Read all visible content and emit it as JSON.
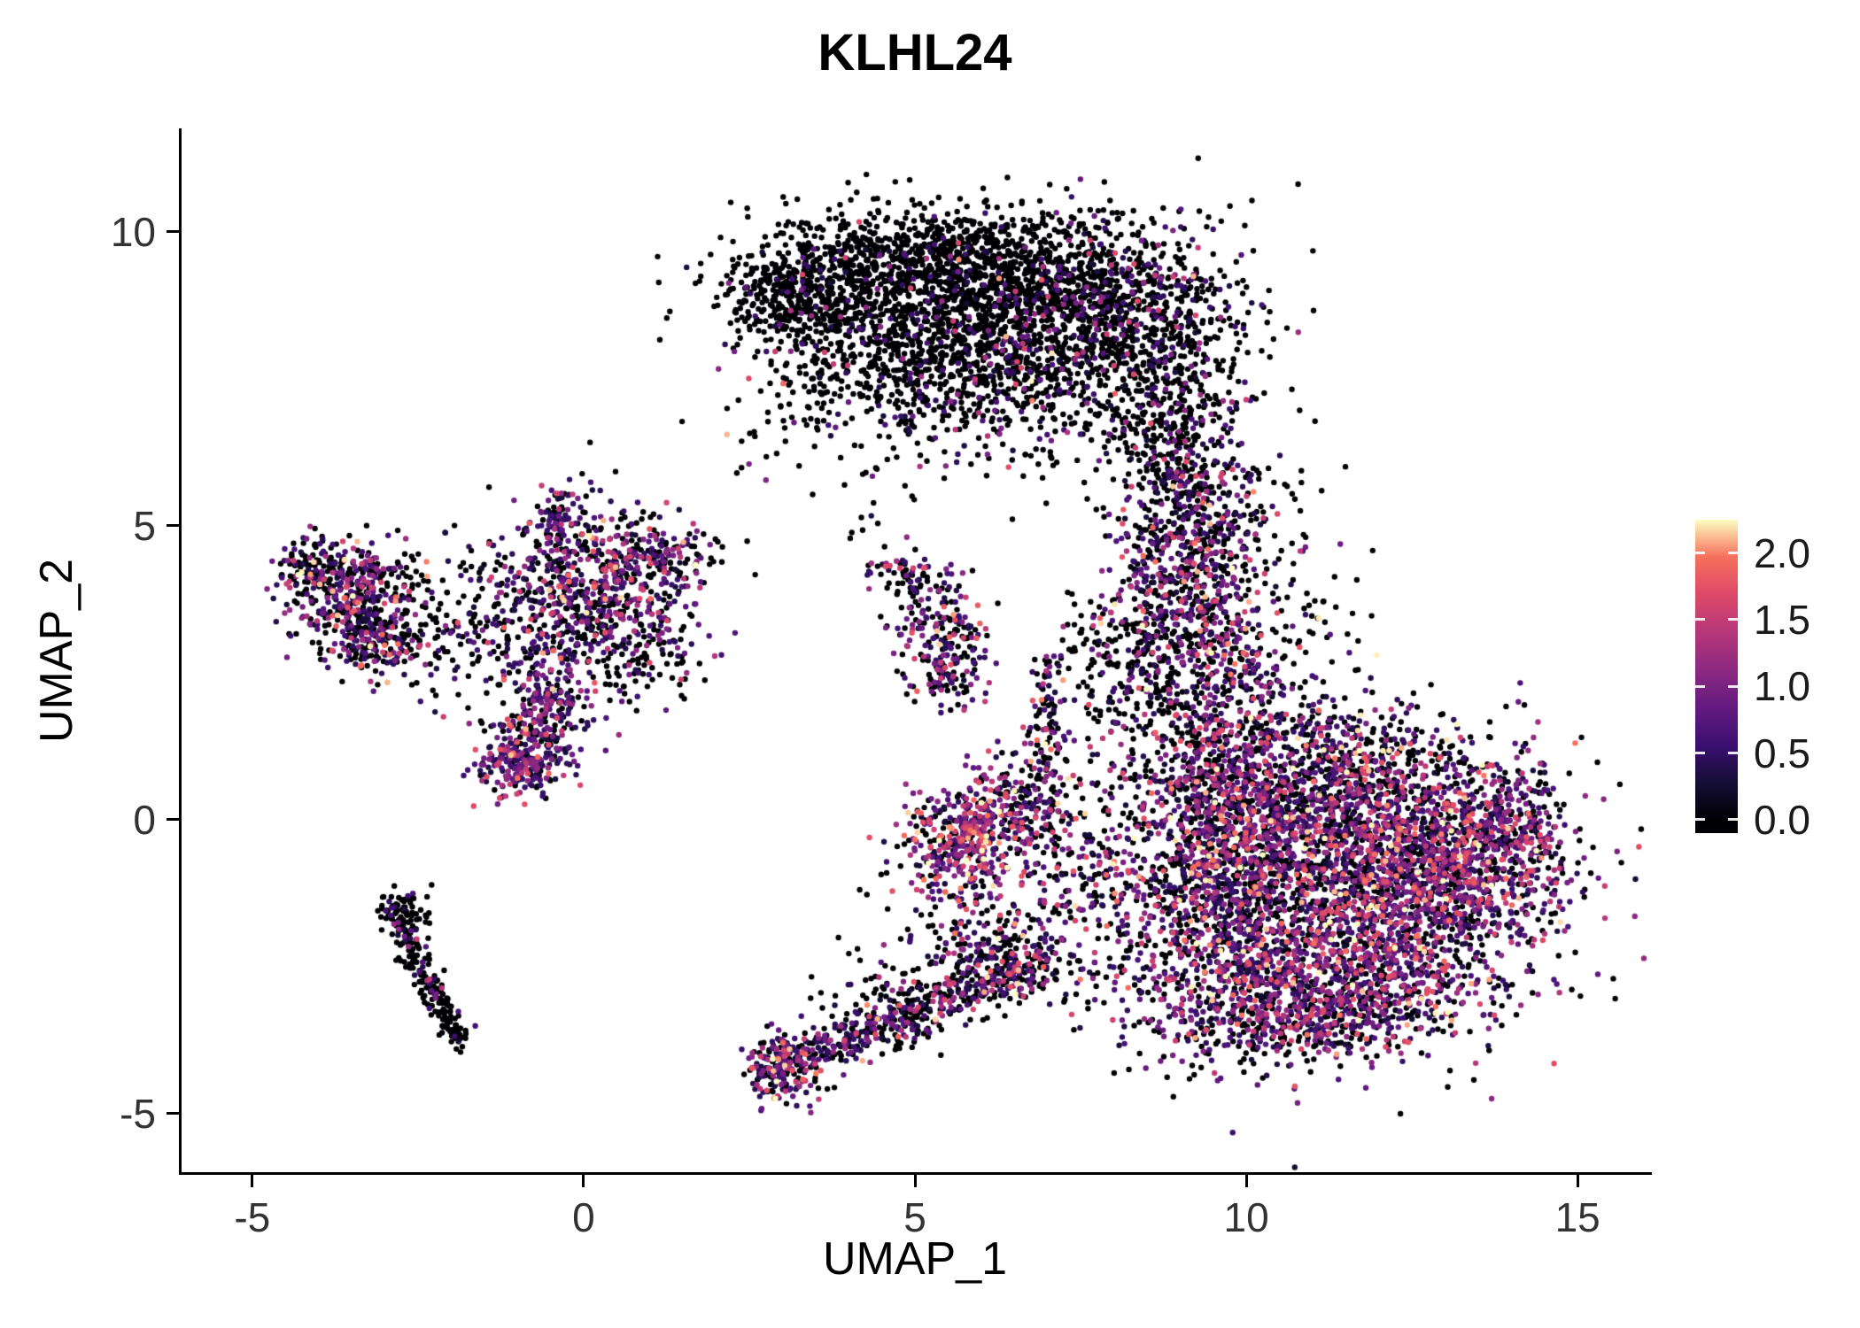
{
  "chart_data": {
    "type": "scatter",
    "title": "KLHL24",
    "xlabel": "UMAP_1",
    "ylabel": "UMAP_2",
    "xlim": [
      -6.08,
      16.08
    ],
    "ylim": [
      -6.01,
      11.76
    ],
    "x_ticks": [
      {
        "label": "-5",
        "value": -5
      },
      {
        "label": "0",
        "value": 0
      },
      {
        "label": "5",
        "value": 5
      },
      {
        "label": "10",
        "value": 10
      },
      {
        "label": "15",
        "value": 15
      }
    ],
    "y_ticks": [
      {
        "label": "-5",
        "value": -5
      },
      {
        "label": "0",
        "value": 0
      },
      {
        "label": "5",
        "value": 5
      },
      {
        "label": "10",
        "value": 10
      }
    ],
    "grid": "off",
    "legend_position": "right",
    "point_radius_px": 3.2,
    "value_max": 2.25,
    "colorbar": {
      "ticks": [
        {
          "label": "2.0",
          "pos": 89.4
        },
        {
          "label": "1.5",
          "pos": 68.1
        },
        {
          "label": "1.0",
          "pos": 46.8
        },
        {
          "label": "0.5",
          "pos": 25.5
        },
        {
          "label": "0.0",
          "pos": 4.3
        }
      ],
      "gradient": [
        {
          "pos": 0,
          "color": "#000004"
        },
        {
          "pos": 4.3,
          "color": "#000004"
        },
        {
          "pos": 16.2,
          "color": "#150e37"
        },
        {
          "pos": 28.1,
          "color": "#3b0f70"
        },
        {
          "pos": 40.0,
          "color": "#641a80"
        },
        {
          "pos": 52.1,
          "color": "#8c2981"
        },
        {
          "pos": 64.3,
          "color": "#b73779"
        },
        {
          "pos": 76.2,
          "color": "#de4968"
        },
        {
          "pos": 88.1,
          "color": "#f7705c"
        },
        {
          "pos": 100,
          "color": "#fcfdbf"
        }
      ]
    },
    "colormap_anchors": [
      [
        0.0,
        [
          0,
          0,
          4
        ]
      ],
      [
        0.125,
        [
          21,
          14,
          55
        ]
      ],
      [
        0.25,
        [
          59,
          15,
          112
        ]
      ],
      [
        0.375,
        [
          100,
          26,
          128
        ]
      ],
      [
        0.5,
        [
          140,
          41,
          129
        ]
      ],
      [
        0.625,
        [
          183,
          55,
          121
        ]
      ],
      [
        0.75,
        [
          222,
          73,
          104
        ]
      ],
      [
        0.875,
        [
          247,
          112,
          92
        ]
      ],
      [
        1.0,
        [
          252,
          253,
          191
        ]
      ]
    ],
    "expression_bands": [
      [
        0,
        0
      ],
      [
        0.25,
        0.7
      ],
      [
        0.7,
        1.2
      ],
      [
        1.2,
        1.75
      ],
      [
        1.75,
        2.3
      ]
    ],
    "profiles": {
      "black": [
        0.93,
        0.05,
        0.015,
        0.005,
        0
      ],
      "blackish": [
        0.8,
        0.12,
        0.05,
        0.025,
        0.005
      ],
      "faint": [
        0.88,
        0.08,
        0.03,
        0.01,
        0
      ],
      "mix": [
        0.45,
        0.25,
        0.17,
        0.1,
        0.03
      ],
      "mixhi": [
        0.32,
        0.26,
        0.22,
        0.15,
        0.05
      ],
      "purplehi": [
        0.25,
        0.36,
        0.25,
        0.12,
        0.02
      ],
      "warm": [
        0.22,
        0.2,
        0.24,
        0.2,
        0.14
      ],
      "hot": [
        0,
        0,
        0.2,
        0.4,
        0.4
      ]
    },
    "clusters": [
      {
        "type": "gauss",
        "cx": 4.0,
        "cy": 9.2,
        "sx": 1.0,
        "sy": 0.55,
        "n": 550,
        "p": "black"
      },
      {
        "type": "gauss",
        "cx": 5.6,
        "cy": 9.45,
        "sx": 1.0,
        "sy": 0.5,
        "n": 650,
        "p": "black"
      },
      {
        "type": "gauss",
        "cx": 7.2,
        "cy": 9.1,
        "sx": 1.1,
        "sy": 0.65,
        "n": 750,
        "p": "blackish"
      },
      {
        "type": "gauss",
        "cx": 8.65,
        "cy": 8.1,
        "sx": 0.75,
        "sy": 0.85,
        "n": 550,
        "p": "blackish"
      },
      {
        "type": "gauss",
        "cx": 6.5,
        "cy": 7.7,
        "sx": 1.1,
        "sy": 0.75,
        "n": 650,
        "p": "blackish"
      },
      {
        "type": "gauss",
        "cx": 5.2,
        "cy": 8.0,
        "sx": 0.8,
        "sy": 0.55,
        "n": 330,
        "p": "black"
      },
      {
        "type": "gauss",
        "cx": 3.05,
        "cy": 8.95,
        "sx": 0.5,
        "sy": 0.4,
        "n": 190,
        "p": "black"
      },
      {
        "type": "gauss",
        "cx": 4.9,
        "cy": 7.0,
        "sx": 1.3,
        "sy": 0.7,
        "n": 140,
        "p": "blackish"
      },
      {
        "type": "gauss",
        "cx": 8.95,
        "cy": 6.3,
        "sx": 0.5,
        "sy": 0.7,
        "n": 240,
        "p": "blackish"
      },
      {
        "type": "gauss",
        "cx": 3.6,
        "cy": 7.9,
        "sx": 0.6,
        "sy": 0.6,
        "n": 120,
        "p": "black"
      },
      {
        "type": "gauss",
        "cx": 9.25,
        "cy": 5.0,
        "sx": 0.5,
        "sy": 0.8,
        "n": 330,
        "p": "mix"
      },
      {
        "type": "gauss",
        "cx": 8.95,
        "cy": 3.5,
        "sx": 0.7,
        "sy": 0.85,
        "n": 420,
        "p": "mix"
      },
      {
        "type": "gauss",
        "cx": 9.6,
        "cy": 2.2,
        "sx": 0.7,
        "sy": 0.8,
        "n": 380,
        "p": "mix"
      },
      {
        "type": "gauss",
        "cx": 8.1,
        "cy": 2.7,
        "sx": 0.5,
        "sy": 0.8,
        "n": 140,
        "p": "blackish"
      },
      {
        "type": "gauss",
        "cx": 10.3,
        "cy": 5.1,
        "sx": 0.5,
        "sy": 0.6,
        "n": 50,
        "p": "blackish"
      },
      {
        "type": "gauss",
        "cx": 10.9,
        "cy": 3.5,
        "sx": 0.5,
        "sy": 0.6,
        "n": 40,
        "p": "blackish"
      },
      {
        "type": "gauss",
        "cx": 11.2,
        "cy": -1.0,
        "sx": 1.5,
        "sy": 1.2,
        "n": 2200,
        "p": "mixhi"
      },
      {
        "type": "gauss",
        "cx": 12.9,
        "cy": -0.9,
        "sx": 0.9,
        "sy": 0.85,
        "n": 850,
        "p": "mixhi"
      },
      {
        "type": "gauss",
        "cx": 10.7,
        "cy": 0.7,
        "sx": 1.35,
        "sy": 0.6,
        "n": 750,
        "p": "mix"
      },
      {
        "type": "gauss",
        "cx": 11.3,
        "cy": -2.9,
        "sx": 1.25,
        "sy": 0.55,
        "n": 700,
        "p": "mixhi"
      },
      {
        "type": "gauss",
        "cx": 14.05,
        "cy": -0.2,
        "sx": 0.4,
        "sy": 0.65,
        "n": 260,
        "p": "mixhi"
      },
      {
        "type": "gauss",
        "cx": 9.6,
        "cy": -0.5,
        "sx": 0.6,
        "sy": 1.0,
        "n": 480,
        "p": "mix"
      },
      {
        "type": "gauss",
        "cx": 9.3,
        "cy": -2.6,
        "sx": 0.8,
        "sy": 0.65,
        "n": 260,
        "p": "mix"
      },
      {
        "type": "gauss",
        "cx": 10.7,
        "cy": -3.5,
        "sx": 0.8,
        "sy": 0.35,
        "n": 160,
        "p": "mix"
      },
      {
        "type": "gauss",
        "cx": 12.3,
        "cy": 1.2,
        "sx": 0.7,
        "sy": 0.4,
        "n": 60,
        "p": "blackish"
      },
      {
        "type": "gauss",
        "cx": -3.5,
        "cy": 3.95,
        "sx": 0.5,
        "sy": 0.42,
        "n": 340,
        "p": "mix"
      },
      {
        "type": "gauss",
        "cx": -3.15,
        "cy": 3.05,
        "sx": 0.42,
        "sy": 0.35,
        "n": 210,
        "p": "mix"
      },
      {
        "type": "gauss",
        "cx": -4.05,
        "cy": 4.3,
        "sx": 0.25,
        "sy": 0.22,
        "n": 70,
        "p": "mix"
      },
      {
        "type": "gauss",
        "cx": -2.6,
        "cy": 3.6,
        "sx": 0.4,
        "sy": 0.5,
        "n": 60,
        "p": "blackish"
      },
      {
        "type": "gauss",
        "cx": 0.15,
        "cy": 3.7,
        "sx": 0.75,
        "sy": 0.65,
        "n": 580,
        "p": "mix"
      },
      {
        "type": "gauss",
        "cx": -0.3,
        "cy": 5.0,
        "sx": 0.28,
        "sy": 0.45,
        "n": 130,
        "p": "mix"
      },
      {
        "type": "gauss",
        "cx": 1.0,
        "cy": 4.45,
        "sx": 0.5,
        "sy": 0.3,
        "n": 160,
        "p": "mix"
      },
      {
        "type": "gauss",
        "cx": -0.55,
        "cy": 2.05,
        "sx": 0.3,
        "sy": 0.55,
        "n": 230,
        "p": "purplehi"
      },
      {
        "type": "gauss",
        "cx": -0.95,
        "cy": 1.0,
        "sx": 0.3,
        "sy": 0.32,
        "n": 250,
        "p": "purplehi"
      },
      {
        "type": "gauss",
        "cx": -1.55,
        "cy": 3.3,
        "sx": 0.5,
        "sy": 0.75,
        "n": 120,
        "p": "blackish"
      },
      {
        "type": "gauss",
        "cx": 0.8,
        "cy": 2.7,
        "sx": 0.5,
        "sy": 0.4,
        "n": 80,
        "p": "blackish"
      },
      {
        "type": "gauss",
        "cx": 5.45,
        "cy": 3.0,
        "sx": 0.35,
        "sy": 0.55,
        "n": 240,
        "p": "mix"
      },
      {
        "type": "gauss",
        "cx": 4.95,
        "cy": 4.15,
        "sx": 0.28,
        "sy": 0.22,
        "n": 65,
        "p": "mix"
      },
      {
        "type": "gauss",
        "cx": 4.62,
        "cy": 4.35,
        "sx": 0.05,
        "sy": 0.05,
        "n": 2,
        "p": "hot"
      },
      {
        "type": "line",
        "x1": -2.95,
        "y1": -1.35,
        "x2": -1.88,
        "y2": -3.8,
        "spread": 0.11,
        "n": 230,
        "p": "faint"
      },
      {
        "type": "gauss",
        "cx": -2.62,
        "cy": -1.55,
        "sx": 0.18,
        "sy": 0.18,
        "n": 50,
        "p": "faint"
      },
      {
        "type": "gauss",
        "cx": 3.05,
        "cy": -4.15,
        "sx": 0.27,
        "sy": 0.32,
        "n": 230,
        "p": "mixhi"
      },
      {
        "type": "line",
        "x1": 3.4,
        "y1": -4.0,
        "x2": 6.9,
        "y2": -2.4,
        "spread": 0.2,
        "n": 440,
        "p": "mix"
      },
      {
        "type": "gauss",
        "cx": 6.3,
        "cy": -2.15,
        "sx": 0.7,
        "sy": 0.45,
        "n": 240,
        "p": "mix"
      },
      {
        "type": "gauss",
        "cx": 4.8,
        "cy": -3.1,
        "sx": 0.7,
        "sy": 0.45,
        "n": 90,
        "p": "blackish"
      },
      {
        "type": "gauss",
        "cx": 5.7,
        "cy": -0.35,
        "sx": 0.45,
        "sy": 0.5,
        "n": 400,
        "p": "warm"
      },
      {
        "type": "gauss",
        "cx": 6.55,
        "cy": 0.2,
        "sx": 0.5,
        "sy": 0.45,
        "n": 190,
        "p": "mix"
      },
      {
        "type": "line",
        "x1": 6.9,
        "y1": 0.6,
        "x2": 7.1,
        "y2": 2.7,
        "spread": 0.14,
        "n": 100,
        "p": "mix"
      },
      {
        "type": "gauss",
        "cx": 7.0,
        "cy": 1.2,
        "sx": 0.08,
        "sy": 0.1,
        "n": 2,
        "p": "hot"
      },
      {
        "type": "gauss",
        "cx": 7.7,
        "cy": -0.9,
        "sx": 0.6,
        "sy": 0.65,
        "n": 150,
        "p": "mix"
      },
      {
        "type": "gauss",
        "cx": 1.85,
        "cy": 4.6,
        "sx": 0.25,
        "sy": 0.2,
        "n": 8,
        "p": "black"
      },
      {
        "type": "gauss",
        "cx": 4.45,
        "cy": 5.1,
        "sx": 0.4,
        "sy": 0.3,
        "n": 10,
        "p": "blackish"
      },
      {
        "type": "gauss",
        "cx": 5.0,
        "cy": -1.6,
        "sx": 0.5,
        "sy": 0.4,
        "n": 14,
        "p": "blackish"
      },
      {
        "type": "gauss",
        "cx": 8.6,
        "cy": -3.9,
        "sx": 0.5,
        "sy": 0.3,
        "n": 18,
        "p": "blackish"
      },
      {
        "type": "gauss",
        "cx": 2.6,
        "cy": 6.3,
        "sx": 0.4,
        "sy": 0.4,
        "n": 10,
        "p": "black"
      }
    ]
  }
}
